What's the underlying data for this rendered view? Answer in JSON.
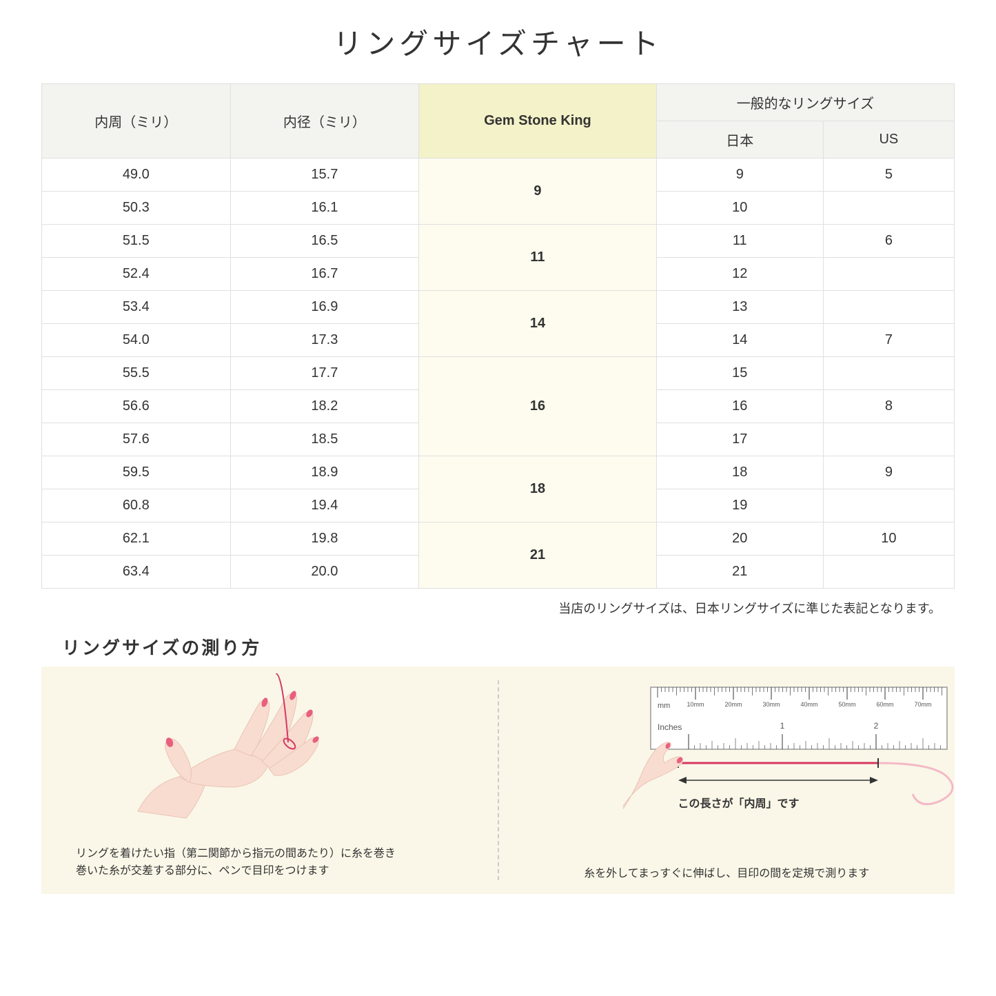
{
  "title": "リングサイズチャート",
  "headers": {
    "inner_circumference": "内周（ミリ）",
    "inner_diameter": "内径（ミリ）",
    "gem_stone_king": "Gem Stone King",
    "general_size": "一般的なリングサイズ",
    "japan": "日本",
    "us": "US"
  },
  "groups": [
    {
      "gsk": "9",
      "rows": [
        {
          "circ": "49.0",
          "dia": "15.7",
          "jp": "9",
          "us": "5"
        },
        {
          "circ": "50.3",
          "dia": "16.1",
          "jp": "10",
          "us": ""
        }
      ]
    },
    {
      "gsk": "11",
      "rows": [
        {
          "circ": "51.5",
          "dia": "16.5",
          "jp": "11",
          "us": "6"
        },
        {
          "circ": "52.4",
          "dia": "16.7",
          "jp": "12",
          "us": ""
        }
      ]
    },
    {
      "gsk": "14",
      "rows": [
        {
          "circ": "53.4",
          "dia": "16.9",
          "jp": "13",
          "us": ""
        },
        {
          "circ": "54.0",
          "dia": "17.3",
          "jp": "14",
          "us": "7"
        }
      ]
    },
    {
      "gsk": "16",
      "rows": [
        {
          "circ": "55.5",
          "dia": "17.7",
          "jp": "15",
          "us": ""
        },
        {
          "circ": "56.6",
          "dia": "18.2",
          "jp": "16",
          "us": "8"
        },
        {
          "circ": "57.6",
          "dia": "18.5",
          "jp": "17",
          "us": ""
        }
      ]
    },
    {
      "gsk": "18",
      "rows": [
        {
          "circ": "59.5",
          "dia": "18.9",
          "jp": "18",
          "us": "9"
        },
        {
          "circ": "60.8",
          "dia": "19.4",
          "jp": "19",
          "us": ""
        }
      ]
    },
    {
      "gsk": "21",
      "rows": [
        {
          "circ": "62.1",
          "dia": "19.8",
          "jp": "20",
          "us": "10"
        },
        {
          "circ": "63.4",
          "dia": "20.0",
          "jp": "21",
          "us": ""
        }
      ]
    }
  ],
  "note": "当店のリングサイズは、日本リングサイズに準じた表記となります。",
  "howto_title": "リングサイズの測り方",
  "howto_left_caption": "リングを着けたい指（第二関節から指元の間あたり）に糸を巻き\n巻いた糸が交差する部分に、ペンで目印をつけます",
  "howto_right_caption": "糸を外してまっすぐに伸ばし、目印の間を定規で測ります",
  "ruler_labels": {
    "mm": "mm",
    "inches": "Inches",
    "mm_ticks": [
      "10mm",
      "20mm",
      "30mm",
      "40mm",
      "50mm",
      "60mm",
      "70mm"
    ],
    "inch_ticks": [
      "1",
      "2"
    ]
  },
  "measure_label": "この長さが「内周」です",
  "colors": {
    "header_bg": "#f3f3ef",
    "highlight_header_bg": "#f4f2c8",
    "highlight_cell_bg": "#fdfcef",
    "border": "#e0e0e0",
    "panel_bg": "#faf7e8",
    "skin": "#f9dcd0",
    "skin_dark": "#e9c4b5",
    "nail": "#e8607e",
    "thread": "#d63760",
    "ruler_border": "#999999"
  }
}
